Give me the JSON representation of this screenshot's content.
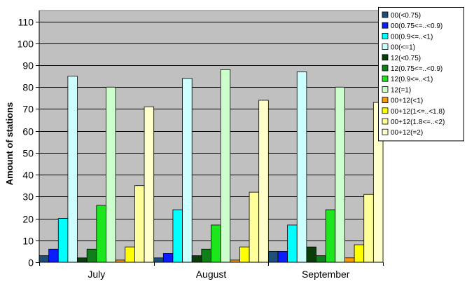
{
  "chart_data": {
    "type": "bar",
    "ylabel": "Amount of stations",
    "xlabel": "",
    "ylim": [
      0,
      115
    ],
    "yticks": [
      0,
      10,
      20,
      30,
      40,
      50,
      60,
      70,
      80,
      90,
      100,
      110
    ],
    "grid": "horizontal",
    "legend_position": "top-right",
    "plot_background": "#c0c0c0",
    "categories": [
      "July",
      "August",
      "September"
    ],
    "series": [
      {
        "name": "00(<0.75)",
        "color": "#1f4e7a",
        "values": [
          3,
          2,
          5
        ]
      },
      {
        "name": "00(0.75<=..<0.9)",
        "color": "#0a1eff",
        "values": [
          6,
          4,
          5
        ]
      },
      {
        "name": "00(0.9<=..<1)",
        "color": "#00ffff",
        "values": [
          20,
          24,
          17
        ]
      },
      {
        "name": "00(<=1)",
        "color": "#ccffff",
        "values": [
          85,
          84,
          87
        ]
      },
      {
        "name": "12(<0.75)",
        "color": "#0b3d0b",
        "values": [
          2,
          3,
          7
        ]
      },
      {
        "name": "12(0.75<=..<0.9)",
        "color": "#0f7f1a",
        "values": [
          6,
          6,
          3
        ]
      },
      {
        "name": "12(0.9<=..<1)",
        "color": "#1ee61e",
        "values": [
          26,
          17,
          24
        ]
      },
      {
        "name": "12(=1)",
        "color": "#ccffcc",
        "values": [
          80,
          88,
          80
        ]
      },
      {
        "name": "00+12(<1)",
        "color": "#ff9900",
        "values": [
          1,
          1,
          2
        ]
      },
      {
        "name": "00+12(1<=..<1.8)",
        "color": "#ffff00",
        "values": [
          7,
          7,
          8
        ]
      },
      {
        "name": "00+12(1.8<=..<2)",
        "color": "#ffff99",
        "values": [
          35,
          32,
          31
        ]
      },
      {
        "name": "00+12(=2)",
        "color": "#ffffcc",
        "values": [
          71,
          74,
          73
        ]
      }
    ]
  }
}
